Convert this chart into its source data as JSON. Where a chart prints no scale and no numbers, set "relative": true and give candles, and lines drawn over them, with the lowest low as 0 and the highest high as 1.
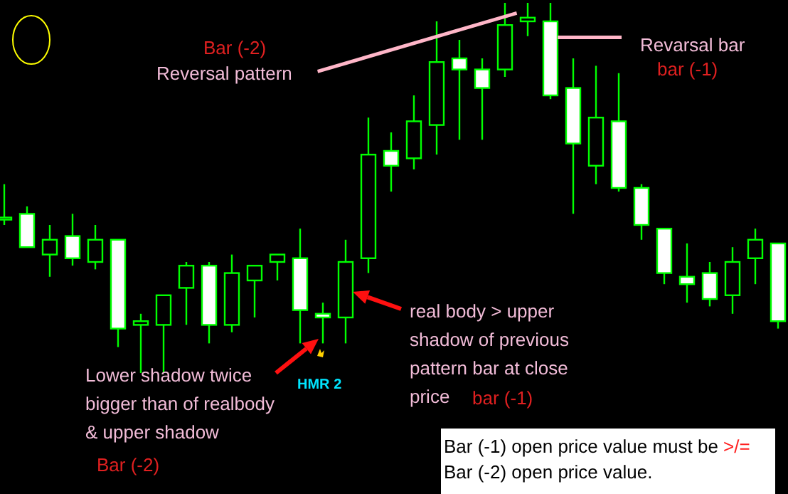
{
  "chart_data": {
    "type": "candlestick",
    "relative": true,
    "categories": [
      null,
      null,
      null,
      null,
      null,
      null,
      null,
      null,
      null,
      null,
      null,
      null,
      null,
      null,
      null,
      null,
      null,
      null,
      null,
      null,
      null,
      null,
      null,
      null,
      null,
      null,
      null,
      null,
      null,
      null,
      null,
      null,
      null,
      null,
      null
    ],
    "ohlc": [
      [
        0.42,
        0.51,
        0.4,
        0.42
      ],
      [
        0.43,
        0.45,
        0.34,
        0.34
      ],
      [
        0.32,
        0.4,
        0.26,
        0.36
      ],
      [
        0.37,
        0.43,
        0.29,
        0.31
      ],
      [
        0.3,
        0.4,
        0.28,
        0.36
      ],
      [
        0.36,
        0.36,
        0.07,
        0.12
      ],
      [
        0.13,
        0.16,
        0,
        0.14
      ],
      [
        0.13,
        0.21,
        0,
        0.21
      ],
      [
        0.23,
        0.3,
        0.13,
        0.29
      ],
      [
        0.29,
        0.3,
        0.08,
        0.13
      ],
      [
        0.13,
        0.32,
        0.11,
        0.27
      ],
      [
        0.25,
        0.29,
        0.15,
        0.29
      ],
      [
        0.3,
        0.32,
        0.25,
        0.32
      ],
      [
        0.31,
        0.39,
        0.08,
        0.17
      ],
      [
        0.16,
        0.19,
        0.08,
        0.15
      ],
      [
        0.15,
        0.36,
        0.08,
        0.3
      ],
      [
        0.31,
        0.69,
        0.27,
        0.59
      ],
      [
        0.6,
        0.65,
        0.49,
        0.56
      ],
      [
        0.58,
        0.75,
        0.55,
        0.68
      ],
      [
        0.67,
        0.95,
        0.59,
        0.84
      ],
      [
        0.85,
        0.9,
        0.63,
        0.82
      ],
      [
        0.82,
        0.85,
        0.63,
        0.77
      ],
      [
        0.82,
        1,
        0.8,
        0.94
      ],
      [
        0.95,
        1,
        0.91,
        0.96
      ],
      [
        0.95,
        1,
        0.74,
        0.75
      ],
      [
        0.77,
        0.85,
        0.43,
        0.62
      ],
      [
        0.56,
        0.83,
        0.51,
        0.69
      ],
      [
        0.68,
        0.81,
        0.49,
        0.5
      ],
      [
        0.5,
        0.51,
        0.36,
        0.4
      ],
      [
        0.39,
        0.39,
        0.24,
        0.27
      ],
      [
        0.26,
        0.35,
        0.19,
        0.24
      ],
      [
        0.27,
        0.3,
        0.18,
        0.2
      ],
      [
        0.21,
        0.34,
        0.16,
        0.3
      ],
      [
        0.31,
        0.39,
        0.24,
        0.36
      ],
      [
        0.35,
        0.35,
        0.12,
        0.14
      ]
    ],
    "annotations": [
      "Bar (-2)",
      "Reversal pattern",
      "Revarsal bar",
      "bar (-1)",
      "real body > upper shadow of previous pattern bar at close price",
      "bar (-1)",
      "HMR 2",
      "Lower shadow twice bigger than of realbody & upper shadow",
      "Bar (-2)",
      "Bar (-1) open price value must be",
      ">/=",
      "Bar (-2) open price value."
    ]
  }
}
